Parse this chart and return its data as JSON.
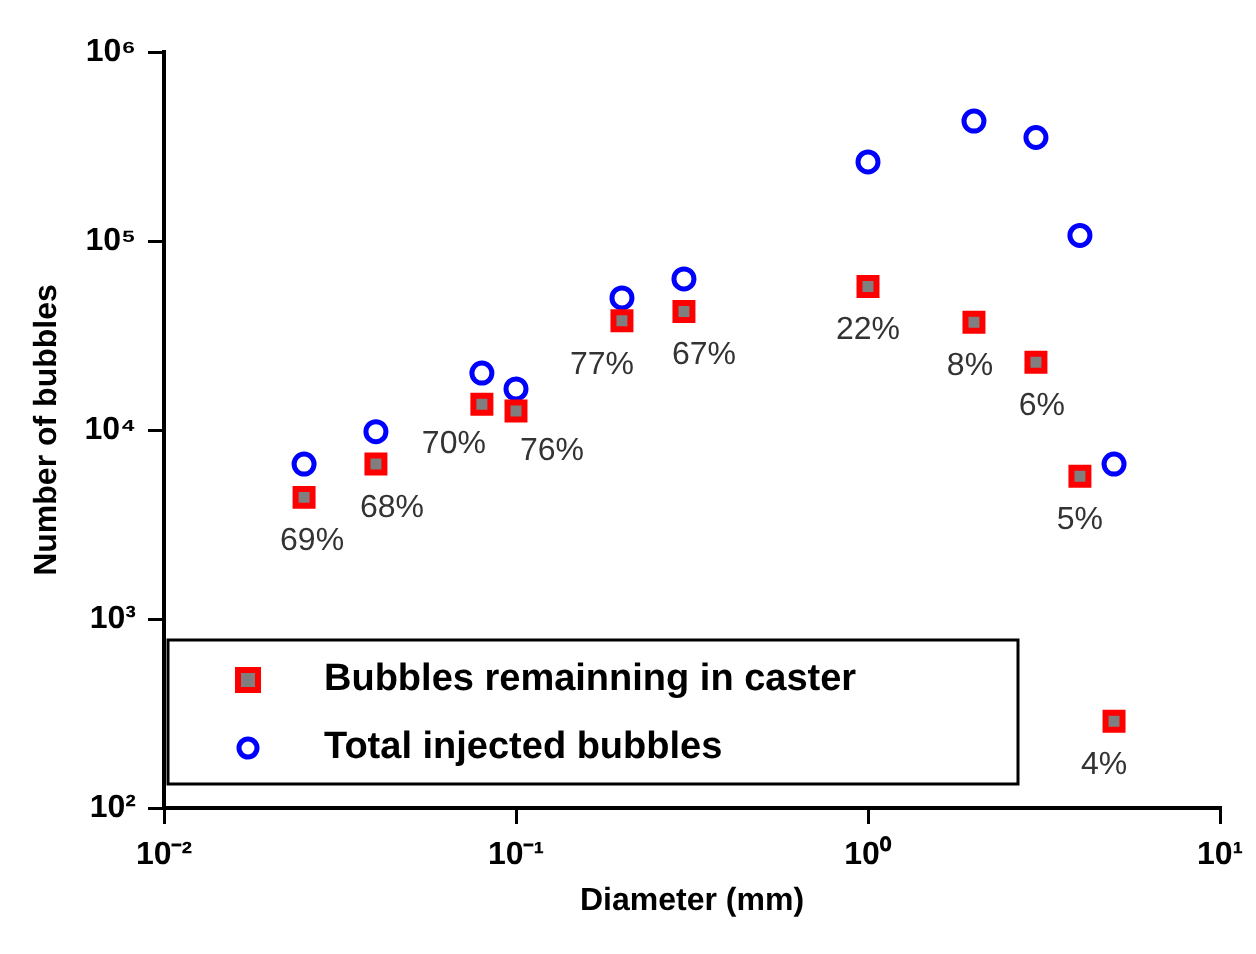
{
  "chart_data": {
    "type": "scatter",
    "xlabel": "Diameter (mm)",
    "ylabel": "Number of bubbles",
    "log": "xy",
    "grid": false,
    "legend": "bottom left",
    "xlim": [
      0.01,
      10
    ],
    "xticks": [
      {
        "value": 0.01,
        "label": "10⁻²"
      },
      {
        "value": 0.1,
        "label": "10⁻¹"
      },
      {
        "value": 1,
        "label": "10⁰"
      },
      {
        "value": 10,
        "label": "10¹"
      }
    ],
    "ylim": [
      100,
      1000000
    ],
    "yticks": [
      {
        "value": 100,
        "label": "10²"
      },
      {
        "value": 1000,
        "label": "10³"
      },
      {
        "value": 10000,
        "label": "10⁴"
      },
      {
        "value": 100000,
        "label": "10⁵"
      },
      {
        "value": 1000000,
        "label": "10⁶"
      }
    ],
    "x": [
      0.025,
      0.04,
      0.08,
      0.1,
      0.2,
      0.3,
      1,
      2,
      3,
      4,
      5
    ],
    "series": [
      {
        "name": "Bubbles remainning in caster",
        "color": "#ff0000",
        "marker": "square",
        "values": [
          4400,
          6600,
          13700,
          12600,
          37800,
          42400,
          57500,
          37200,
          22800,
          5700,
          288
        ]
      },
      {
        "name": "Total injected bubbles",
        "color": "#0000ff",
        "marker": "circle",
        "values": [
          6600,
          9800,
          20000,
          16500,
          50000,
          63000,
          262000,
          431000,
          353000,
          107000,
          6600
        ]
      }
    ],
    "annotations": [
      {
        "text": "69%",
        "x": 0.025,
        "y": 4400
      },
      {
        "text": "68%",
        "x": 0.04,
        "y": 6600
      },
      {
        "text": "70%",
        "x": 0.08,
        "y": 13700
      },
      {
        "text": "76%",
        "x": 0.1,
        "y": 12600
      },
      {
        "text": "77%",
        "x": 0.2,
        "y": 37800
      },
      {
        "text": "67%",
        "x": 0.3,
        "y": 42400
      },
      {
        "text": "22%",
        "x": 1,
        "y": 57500
      },
      {
        "text": "8%",
        "x": 2,
        "y": 37200
      },
      {
        "text": "6%",
        "x": 3,
        "y": 22800
      },
      {
        "text": "5%",
        "x": 4,
        "y": 5700
      },
      {
        "text": "4%",
        "x": 5,
        "y": 288
      }
    ]
  }
}
